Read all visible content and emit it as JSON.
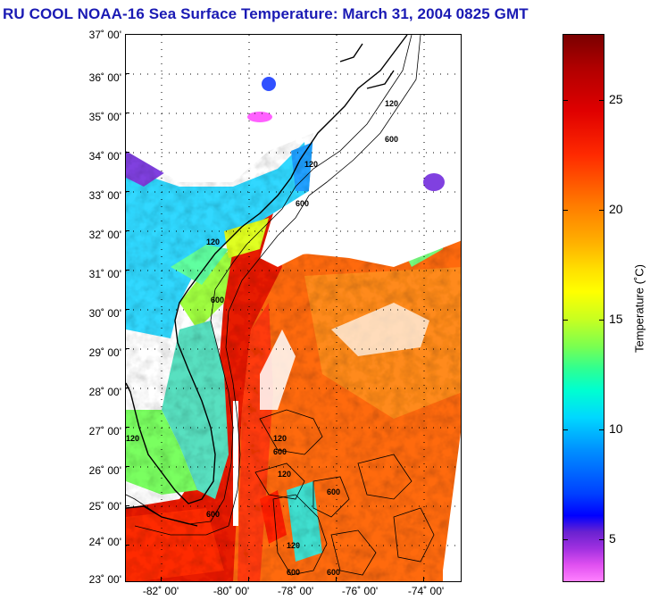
{
  "title": "RU COOL  NOAA-16  Sea Surface Temperature:  March 31, 2004 0825 GMT",
  "map": {
    "lat_labels": [
      "37˚ 00'",
      "36˚ 00'",
      "35˚ 00'",
      "34˚ 00'",
      "33˚ 00'",
      "32˚ 00'",
      "31˚ 00'",
      "30˚ 00'",
      "29˚ 00'",
      "28˚ 00'",
      "27˚ 00'",
      "26˚ 00'",
      "25˚ 00'",
      "24˚ 00'",
      "23˚ 00'"
    ],
    "lon_labels": [
      "-82˚ 00'",
      "-80˚ 00'",
      "-78˚ 00'",
      "-76˚ 00'",
      "-74˚ 00'"
    ],
    "contour_labels": [
      "120",
      "600",
      "120",
      "600",
      "120",
      "600",
      "120",
      "600",
      "120",
      "600",
      "120",
      "600",
      "120",
      "600",
      "600"
    ]
  },
  "colorbar": {
    "title": "Temperature (˚C)",
    "ticks": [
      "25",
      "20",
      "15",
      "10",
      "5"
    ]
  },
  "colors": {
    "title": "#1a1ab4",
    "cloud": "#ffffff",
    "land": "#ffffff"
  }
}
